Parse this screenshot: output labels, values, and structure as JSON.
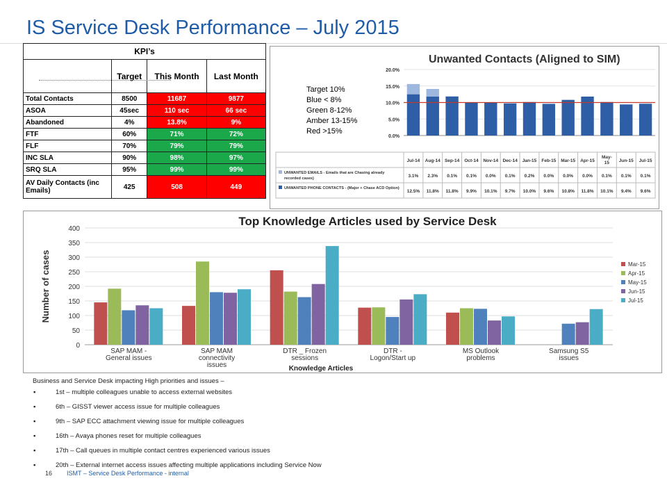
{
  "page": {
    "title": "IS Service Desk Performance – July 2015",
    "page_number": "16",
    "footer": "ISMT – Service Desk Performance - internal"
  },
  "kpi": {
    "heading": "KPI’s",
    "columns": [
      "Target",
      "This Month",
      "Last Month"
    ],
    "rows": [
      {
        "label": "Total Contacts",
        "target": "8500",
        "this": "11687",
        "last": "9877",
        "this_status": "red",
        "last_status": "red"
      },
      {
        "label": "ASOA",
        "target": "45sec",
        "this": "110 sec",
        "last": "66 sec",
        "this_status": "red",
        "last_status": "red"
      },
      {
        "label": "Abandoned",
        "target": "4%",
        "this": "13.8%",
        "last": "9%",
        "this_status": "red",
        "last_status": "red"
      },
      {
        "label": "FTF",
        "target": "60%",
        "this": "71%",
        "last": "72%",
        "this_status": "green",
        "last_status": "green"
      },
      {
        "label": "FLF",
        "target": "70%",
        "this": "79%",
        "last": "79%",
        "this_status": "green",
        "last_status": "green"
      },
      {
        "label": "INC SLA",
        "target": "90%",
        "this": "98%",
        "last": "97%",
        "this_status": "green",
        "last_status": "green"
      },
      {
        "label": "SRQ SLA",
        "target": "95%",
        "this": "99%",
        "last": "99%",
        "this_status": "green",
        "last_status": "green"
      },
      {
        "label": "AV Daily Contacts (inc Emails)",
        "target": "425",
        "this": "508",
        "last": "449",
        "this_status": "red",
        "last_status": "red"
      }
    ]
  },
  "unwanted": {
    "targets": [
      "Target 10%",
      "Blue < 8%",
      "Green 8-12%",
      "Amber 13-15%",
      "Red >15%"
    ]
  },
  "notes": {
    "intro": "Business and Service Desk impacting High priorities and issues –",
    "items": [
      "1st – multiple colleagues unable to access external websites",
      "6th – GISST viewer access issue for multiple colleagues",
      "9th – SAP ECC attachment viewing issue for multiple colleagues",
      "16th – Avaya phones reset for multiple colleagues",
      "17th – Call queues in multiple contact centres experienced various issues",
      "20th – External internet access issues affecting multiple applications including Service Now"
    ]
  },
  "chart_data": [
    {
      "type": "bar",
      "title": "Unwanted Contacts (Aligned to SIM)",
      "stacked": true,
      "categories": [
        "Jul-14",
        "Aug-14",
        "Sep-14",
        "Oct-14",
        "Nov-14",
        "Dec-14",
        "Jan-15",
        "Feb-15",
        "Mar-15",
        "Apr-15",
        "May-15",
        "Jun-15",
        "Jul-15"
      ],
      "category_labels": [
        "Jul-14",
        "Aug-14",
        "Sep-14",
        "Oct-14",
        "Nov-14",
        "Dec-14",
        "Jan-15",
        "Feb-15",
        "Mar-15",
        "Apr-15",
        "May-\n15",
        "Jun-15",
        "Jul-15"
      ],
      "series": [
        {
          "name": "UNWANTED PHONE CONTACTS - (Major + Chase ACD Option)",
          "color": "#2e5fa6",
          "labels": [
            "12.5%",
            "11.8%",
            "11.8%",
            "9.9%",
            "10.1%",
            "9.7%",
            "10.0%",
            "9.6%",
            "10.8%",
            "11.8%",
            "10.1%",
            "9.4%",
            "9.6%"
          ],
          "values": [
            12.5,
            11.8,
            11.8,
            9.9,
            10.1,
            9.7,
            10.0,
            9.6,
            10.8,
            11.8,
            10.1,
            9.4,
            9.6
          ]
        },
        {
          "name": "UNWANTED EMAILS - Emails that are Chasing already recorded cases)",
          "color": "#9db7de",
          "labels": [
            "3.1%",
            "2.3%",
            "0.1%",
            "0.1%",
            "0.0%",
            "0.1%",
            "0.2%",
            "0.0%",
            "0.0%",
            "0.0%",
            "0.1%",
            "0.1%",
            "0.1%"
          ],
          "values": [
            3.1,
            2.3,
            0.1,
            0.1,
            0.0,
            0.1,
            0.2,
            0.0,
            0.0,
            0.0,
            0.1,
            0.1,
            0.1
          ]
        }
      ],
      "target_line": 10,
      "target_color": "#c0392b",
      "ylim": [
        0,
        20
      ],
      "yticks": [
        "0.0%",
        "5.0%",
        "10.0%",
        "15.0%",
        "20.0%"
      ]
    },
    {
      "type": "bar",
      "title": "Top Knowledge Articles used by Service Desk",
      "xlabel": "Knowledge Articles",
      "ylabel": "Number of cases",
      "ylim": [
        0,
        400
      ],
      "yticks": [
        0,
        50,
        100,
        150,
        200,
        250,
        300,
        350,
        400
      ],
      "categories": [
        "SAP MAM - General issues",
        "SAP MAM connectivity issues",
        "DTR _ Frozen sessions",
        "DTR - Logon/Start up",
        "MS Outlook problems",
        "Samsung S5 issues"
      ],
      "category_lines": [
        [
          "SAP MAM -",
          "General issues"
        ],
        [
          "SAP MAM",
          "connectivity",
          "issues"
        ],
        [
          "DTR _ Frozen",
          "sessions"
        ],
        [
          "DTR -",
          "Logon/Start up"
        ],
        [
          "MS Outlook",
          "problems"
        ],
        [
          "Samsung S5",
          "issues"
        ]
      ],
      "series": [
        {
          "name": "Mar-15",
          "color": "#c0504d",
          "values": [
            145,
            133,
            255,
            127,
            110,
            null
          ]
        },
        {
          "name": "Apr-15",
          "color": "#9bbb59",
          "values": [
            192,
            285,
            182,
            128,
            125,
            null
          ]
        },
        {
          "name": "May-15",
          "color": "#4f81bd",
          "values": [
            118,
            180,
            163,
            95,
            123,
            72
          ]
        },
        {
          "name": "Jun-15",
          "color": "#8064a2",
          "values": [
            135,
            178,
            208,
            155,
            83,
            77
          ]
        },
        {
          "name": "Jul-15",
          "color": "#4bacc6",
          "values": [
            125,
            190,
            338,
            173,
            97,
            122
          ]
        }
      ],
      "legend": "right"
    }
  ]
}
